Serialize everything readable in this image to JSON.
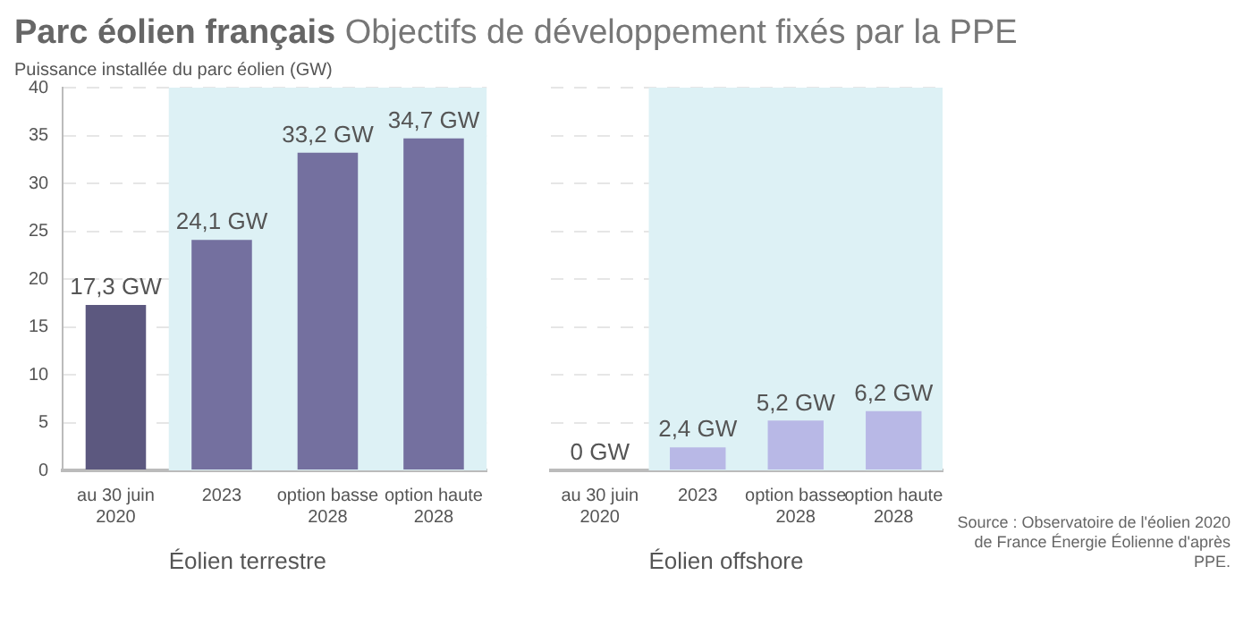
{
  "chart_data": [
    {
      "type": "bar",
      "title": "Parc éolien français",
      "subtitle": "Objectifs de développement fixés par la PPE",
      "ylabel": "Puissance installée du parc éolien (GW)",
      "xlabel": "Éolien terrestre",
      "categories": [
        "au 30 juin 2020",
        "2023",
        "option basse 2028",
        "option haute 2028"
      ],
      "values": [
        17.3,
        24.1,
        33.2,
        34.7
      ],
      "colors": [
        "#5c587f",
        "#74709f",
        "#74709f",
        "#74709f"
      ],
      "value_labels": [
        "17,3 GW",
        "24,1 GW",
        "33,2 GW",
        "34,7 GW"
      ],
      "ylim": [
        0,
        40
      ],
      "yticks": [
        0,
        5,
        10,
        15,
        20,
        25,
        30,
        35,
        40
      ],
      "grid": "y",
      "bands": [
        {
          "axis": "x",
          "from": "2023",
          "to": "option haute 2028",
          "color": "#ddf1f5"
        }
      ]
    },
    {
      "type": "bar",
      "xlabel": "Éolien offshore",
      "categories": [
        "au 30 juin 2020",
        "2023",
        "option basse 2028",
        "option haute 2028"
      ],
      "values": [
        0,
        2.4,
        5.2,
        6.2
      ],
      "colors": [
        "#b8b8e6",
        "#b8b8e6",
        "#b8b8e6",
        "#b8b8e6"
      ],
      "value_labels": [
        "0 GW",
        "2,4 GW",
        "5,2 GW",
        "6,2 GW"
      ],
      "ylim": [
        0,
        40
      ],
      "yticks": [
        0,
        5,
        10,
        15,
        20,
        25,
        30,
        35,
        40
      ],
      "grid": "y",
      "tick_labels": "x",
      "bands": [
        {
          "axis": "x",
          "from": "2023",
          "to": "option haute 2028",
          "color": "#ddf1f5"
        }
      ],
      "annotations": [
        "Source : Observatoire de l'éolien 2020 de France Énergie Éolienne d'après PPE."
      ]
    }
  ]
}
